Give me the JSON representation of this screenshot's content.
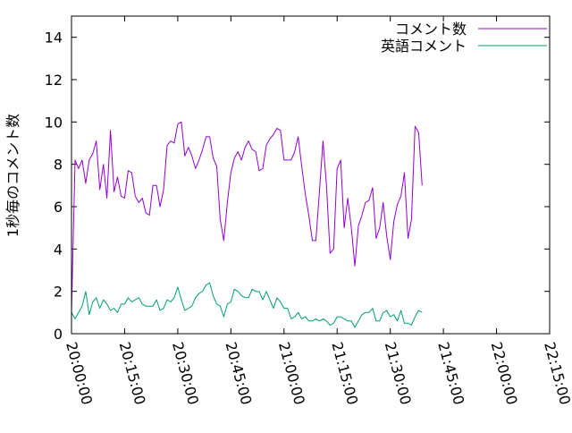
{
  "chart_data": {
    "type": "line",
    "ylabel": "1秒毎のコメント数",
    "xlabel": "",
    "ylim": [
      0,
      15
    ],
    "xlim": [
      "20:00:00",
      "22:15:00"
    ],
    "yticks": [
      "0",
      "2",
      "4",
      "6",
      "8",
      "10",
      "12",
      "14"
    ],
    "xticks": [
      "20:00:00",
      "20:15:00",
      "20:30:00",
      "20:45:00",
      "21:00:00",
      "21:15:00",
      "21:30:00",
      "21:45:00",
      "22:00:00",
      "22:15:00"
    ],
    "legend_position": "top-right",
    "x_start": "20:00:00",
    "x_step_seconds": 60,
    "series": [
      {
        "name": "コメント数",
        "color": "#9400d3",
        "values": [
          1.0,
          8.2,
          7.8,
          8.2,
          7.1,
          8.2,
          8.5,
          9.1,
          6.8,
          8.0,
          6.4,
          9.6,
          6.7,
          7.4,
          6.5,
          6.4,
          7.7,
          7.6,
          6.5,
          6.2,
          6.4,
          5.7,
          5.6,
          7.0,
          7.0,
          6.0,
          6.8,
          8.9,
          9.1,
          9.0,
          9.9,
          10.0,
          8.4,
          8.8,
          8.4,
          7.8,
          8.2,
          8.7,
          9.3,
          9.3,
          8.3,
          7.9,
          5.4,
          4.4,
          6.2,
          7.6,
          8.3,
          8.6,
          8.2,
          8.8,
          9.1,
          8.7,
          8.6,
          7.7,
          7.8,
          8.9,
          9.2,
          9.4,
          9.7,
          9.6,
          8.2,
          8.2,
          8.2,
          8.6,
          9.3,
          7.9,
          6.6,
          5.6,
          4.4,
          4.4,
          6.7,
          9.1,
          7.0,
          3.8,
          4.0,
          7.8,
          8.2,
          5.0,
          6.4,
          5.0,
          3.2,
          5.1,
          5.6,
          6.2,
          6.3,
          6.9,
          4.5,
          5.0,
          6.2,
          4.6,
          3.5,
          5.3,
          6.1,
          6.5,
          7.6,
          4.5,
          5.4,
          9.8,
          9.5,
          7.0
        ]
      },
      {
        "name": "英語コメント",
        "color": "#009e73",
        "values": [
          1.0,
          0.7,
          1.0,
          1.3,
          2.0,
          0.9,
          1.5,
          1.7,
          1.2,
          1.6,
          1.4,
          1.1,
          1.2,
          1.0,
          1.4,
          1.4,
          1.7,
          1.5,
          1.6,
          1.7,
          1.4,
          1.3,
          1.3,
          1.3,
          1.6,
          1.1,
          1.2,
          1.6,
          1.5,
          1.7,
          2.2,
          1.6,
          1.1,
          1.2,
          1.3,
          1.7,
          1.9,
          2.0,
          2.3,
          2.4,
          1.8,
          1.4,
          1.3,
          0.8,
          1.4,
          1.5,
          2.1,
          2.0,
          1.8,
          1.7,
          1.7,
          2.1,
          2.0,
          2.0,
          1.6,
          2.0,
          1.6,
          1.2,
          1.7,
          1.5,
          1.2,
          1.2,
          0.7,
          0.8,
          1.0,
          0.7,
          0.8,
          0.6,
          0.6,
          0.7,
          0.6,
          0.7,
          0.6,
          0.4,
          0.5,
          0.8,
          0.8,
          0.7,
          0.6,
          0.6,
          0.3,
          0.6,
          0.9,
          1.0,
          1.0,
          1.2,
          0.6,
          0.6,
          1.0,
          1.1,
          0.8,
          0.9,
          0.6,
          1.1,
          0.5,
          0.5,
          0.4,
          0.8,
          1.1,
          1.0
        ]
      }
    ]
  }
}
